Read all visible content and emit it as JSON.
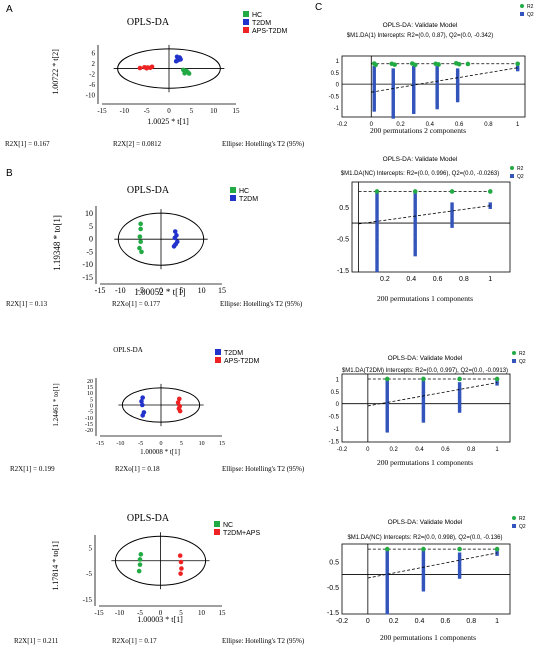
{
  "panel_labels": [
    "A",
    "B",
    "C"
  ],
  "colors": {
    "HC": "#22aa44",
    "NC": "#22aa44",
    "T2DM": "#2233cc",
    "APS": "#ee2222",
    "R2": "#22aa44",
    "Q2": "#3355bb"
  },
  "chart_data": [
    {
      "type": "scatter",
      "panel": "A",
      "title": "OPLS-DA",
      "xlabel": "1.0025 * t[1]",
      "ylabel": "1.00722 * t[2]",
      "xticks": [
        "-15",
        "-10",
        "-5",
        "0",
        "5",
        "10",
        "15"
      ],
      "yticks": [
        "6",
        "2",
        "-2",
        "-6",
        "-10"
      ],
      "xlim": [
        -15,
        15
      ],
      "ylim": [
        -12,
        9
      ],
      "ellipse": {
        "cx": 0,
        "cy": 0,
        "rx": 11.5,
        "ry": 7.5
      },
      "legend": [
        {
          "name": "HC",
          "color": "#22aa44"
        },
        {
          "name": "T2DM",
          "color": "#2233cc"
        },
        {
          "name": "APS-T2DM",
          "color": "#ee2222"
        }
      ],
      "series": [
        {
          "name": "HC",
          "color": "#22aa44",
          "points": [
            [
              3.2,
              -0.5
            ],
            [
              3.6,
              -1.2
            ],
            [
              3.5,
              -1.8
            ],
            [
              4.2,
              -1.4
            ],
            [
              4.5,
              -1.9
            ],
            [
              3.9,
              -0.9
            ]
          ]
        },
        {
          "name": "T2DM",
          "color": "#2233cc",
          "points": [
            [
              1.8,
              4.5
            ],
            [
              2.1,
              3.8
            ],
            [
              2.4,
              4.2
            ],
            [
              2.0,
              3.2
            ],
            [
              2.6,
              3.5
            ],
            [
              1.6,
              2.8
            ]
          ]
        },
        {
          "name": "APS-T2DM",
          "color": "#ee2222",
          "points": [
            [
              -6.5,
              0.2
            ],
            [
              -5.5,
              0.5
            ],
            [
              -4.8,
              0.4
            ],
            [
              -4.2,
              0.3
            ],
            [
              -3.8,
              0.7
            ],
            [
              -5.0,
              0.1
            ]
          ]
        }
      ],
      "footer": [
        "R2X[1] = 0.167",
        "R2X[2] = 0.0812",
        "Ellipse: Hotelling's T2 (95%)"
      ]
    },
    {
      "type": "scatter",
      "panel": "B1",
      "title": "OPLS-DA",
      "xlabel": "1.00052 * t[1]",
      "ylabel": "1.19348 * to[1]",
      "xticks": [
        "-15",
        "-10",
        "-5",
        "0",
        "5",
        "10",
        "15"
      ],
      "yticks": [
        "10",
        "5",
        "0",
        "-5",
        "-10",
        "-15"
      ],
      "xlim": [
        -15,
        15
      ],
      "ylim": [
        -16,
        13
      ],
      "ellipse": {
        "cx": 0,
        "cy": 0,
        "rx": 10.5,
        "ry": 10.2
      },
      "legend": [
        {
          "name": "HC",
          "color": "#22aa44"
        },
        {
          "name": "T2DM",
          "color": "#2233cc"
        }
      ],
      "series": [
        {
          "name": "HC",
          "color": "#22aa44",
          "points": [
            [
              -5,
              6
            ],
            [
              -5,
              4
            ],
            [
              -5.2,
              1
            ],
            [
              -5,
              -1
            ],
            [
              -5.3,
              -3.5
            ],
            [
              -4.8,
              -5
            ]
          ]
        },
        {
          "name": "T2DM",
          "color": "#2233cc",
          "points": [
            [
              3.5,
              3
            ],
            [
              3.8,
              1.5
            ],
            [
              3.4,
              0.5
            ],
            [
              4.0,
              -1
            ],
            [
              3.6,
              -2
            ],
            [
              3.2,
              -2.8
            ]
          ]
        }
      ],
      "footer": [
        "R2X[1] = 0.13",
        "R2Xo[1] = 0.177",
        "Ellipse: Hotelling's T2 (95%)"
      ]
    },
    {
      "type": "scatter",
      "panel": "B2",
      "title": "OPLS-DA",
      "xlabel": "1.00008 * t[1]",
      "ylabel": "1.24461 * to[1]",
      "xticks": [
        "-15",
        "-10",
        "-5",
        "0",
        "5",
        "10",
        "15"
      ],
      "yticks": [
        "20",
        "15",
        "10",
        "5",
        "0",
        "-5",
        "-10",
        "-15",
        "-20"
      ],
      "xlim": [
        -15,
        15
      ],
      "ylim": [
        -22,
        22
      ],
      "ellipse": {
        "cx": 0,
        "cy": 0,
        "rx": 9.5,
        "ry": 14
      },
      "legend": [
        {
          "name": "T2DM",
          "color": "#2233cc"
        },
        {
          "name": "APS-T2DM",
          "color": "#ee2222"
        }
      ],
      "series": [
        {
          "name": "T2DM",
          "color": "#2233cc",
          "points": [
            [
              -4.5,
              6
            ],
            [
              -4.8,
              3
            ],
            [
              -4.6,
              0
            ],
            [
              -4.2,
              -6
            ],
            [
              -4.5,
              -8.5
            ]
          ]
        },
        {
          "name": "APS-T2DM",
          "color": "#ee2222",
          "points": [
            [
              4.5,
              5
            ],
            [
              4.2,
              2
            ],
            [
              4.6,
              -1
            ],
            [
              4.4,
              -3
            ],
            [
              4.7,
              -5
            ]
          ]
        }
      ],
      "footer": [
        "R2X[1] = 0.199",
        "R2Xo[1] = 0.18",
        "Ellipse: Hotelling's T2 (95%)"
      ]
    },
    {
      "type": "scatter",
      "panel": "B3",
      "title": "OPLS-DA",
      "xlabel": "1.00003 * t[1]",
      "ylabel": "1.17814 * to[1]",
      "xticks": [
        "-15",
        "-10",
        "-5",
        "0",
        "5",
        "10",
        "15"
      ],
      "yticks": [
        "5",
        "-5",
        "-15"
      ],
      "xlim": [
        -15,
        15
      ],
      "ylim": [
        -16,
        10
      ],
      "ellipse": {
        "cx": 0,
        "cy": 0,
        "rx": 11,
        "ry": 9.5
      },
      "legend": [
        {
          "name": "NC",
          "color": "#22aa44"
        },
        {
          "name": "T2DM+APS",
          "color": "#ee2222"
        }
      ],
      "series": [
        {
          "name": "NC",
          "color": "#22aa44",
          "points": [
            [
              -4.8,
              2.5
            ],
            [
              -5,
              0.5
            ],
            [
              -5,
              -1.5
            ],
            [
              -5.2,
              -4
            ]
          ]
        },
        {
          "name": "T2DM+APS",
          "color": "#ee2222",
          "points": [
            [
              4.8,
              2
            ],
            [
              5,
              -0.5
            ],
            [
              5.1,
              -3
            ],
            [
              4.9,
              -5
            ]
          ]
        }
      ],
      "footer": [
        "R2X[1] = 0.211",
        "R2Xo[1] = 0.17",
        "Ellipse: Hotelling's T2 (95%)"
      ]
    },
    {
      "type": "scatter",
      "panel": "C1",
      "title": "OPLS-DA: Validate Model",
      "subtitle": "$M1.DA(1) Intercepts: R2=(0.0, 0.87), Q2=(0.0, -0.342)",
      "xlabel": "200 permutations 2 components",
      "xticks": [
        "-0.2",
        "0",
        "0.2",
        "0.4",
        "0.6",
        "0.8",
        "1"
      ],
      "yticks": [
        "1",
        "0.5",
        "0",
        "-0.5",
        "-1"
      ],
      "xlim": [
        -0.2,
        1.05
      ],
      "ylim": [
        -1.4,
        1.2
      ],
      "legend": [
        {
          "name": "R2",
          "color": "#22aa44"
        },
        {
          "name": "Q2",
          "color": "#3355bb"
        }
      ],
      "r2_line": {
        "x": [
          0,
          1
        ],
        "y": [
          0.87,
          0.87
        ]
      },
      "q2_line": {
        "x": [
          0,
          1
        ],
        "y": [
          -0.342,
          0.7
        ]
      },
      "r2_points": [
        [
          0.02,
          0.88
        ],
        [
          0.03,
          0.82
        ],
        [
          0.14,
          0.87
        ],
        [
          0.16,
          0.83
        ],
        [
          0.28,
          0.88
        ],
        [
          0.3,
          0.82
        ],
        [
          0.44,
          0.87
        ],
        [
          0.46,
          0.84
        ],
        [
          0.58,
          0.89
        ],
        [
          0.6,
          0.85
        ],
        [
          0.66,
          0.86
        ],
        [
          1.0,
          0.87
        ]
      ],
      "q2_bars": [
        {
          "x": 0.02,
          "ymin": -1.1,
          "ymax": 0.7
        },
        {
          "x": 0.15,
          "ymin": -1.4,
          "ymax": 0.6
        },
        {
          "x": 0.29,
          "ymin": -1.2,
          "ymax": 0.7
        },
        {
          "x": 0.45,
          "ymin": -1.0,
          "ymax": 0.7
        },
        {
          "x": 0.59,
          "ymin": -0.7,
          "ymax": 0.6
        },
        {
          "x": 1.0,
          "ymin": 0.62,
          "ymax": 0.72
        }
      ]
    },
    {
      "type": "scatter",
      "panel": "C2",
      "title": "OPLS-DA: Validate Model",
      "subtitle": "$M1.DA(NC) Intercepts: R2=(0.0, 0.996), Q2=(0.0, -0.0263)",
      "xlabel": "200 permutations 1 components",
      "xticks": [
        "0.2",
        "0.4",
        "0.6",
        "0.8",
        "1"
      ],
      "yticks": [
        "0.5",
        "-0.5",
        "-1.5"
      ],
      "xlim": [
        -0.05,
        1.15
      ],
      "ylim": [
        -1.55,
        1.3
      ],
      "legend": [
        {
          "name": "R2",
          "color": "#22aa44"
        },
        {
          "name": "Q2",
          "color": "#3355bb"
        }
      ],
      "r2_line": {
        "x": [
          0,
          1
        ],
        "y": [
          0.996,
          0.996
        ]
      },
      "q2_line": {
        "x": [
          0,
          1
        ],
        "y": [
          -0.0263,
          0.55
        ]
      },
      "r2_points": [
        [
          0.14,
          1.0
        ],
        [
          0.43,
          1.0
        ],
        [
          0.71,
          1.0
        ],
        [
          1.0,
          1.0
        ]
      ],
      "q2_bars": [
        {
          "x": 0.14,
          "ymin": -1.5,
          "ymax": 0.9
        },
        {
          "x": 0.43,
          "ymin": -1.0,
          "ymax": 0.9
        },
        {
          "x": 0.71,
          "ymin": -0.1,
          "ymax": 0.6
        },
        {
          "x": 1.0,
          "ymin": 0.5,
          "ymax": 0.6
        }
      ]
    },
    {
      "type": "scatter",
      "panel": "C3",
      "title": "OPLS-DA: Validate Model",
      "subtitle": "$M1.DA(T2DM) Intercepts: R2=(0.0, 0.997), Q2=(0.0, -0.0913)",
      "xlabel": "200 permutations 1 components",
      "xticks": [
        "-0.2",
        "0",
        "0.2",
        "0.4",
        "0.6",
        "0.8",
        "1"
      ],
      "yticks": [
        "1",
        "0.5",
        "0",
        "-0.5",
        "-1",
        "-1.5"
      ],
      "xlim": [
        -0.2,
        1.1
      ],
      "ylim": [
        -1.55,
        1.2
      ],
      "legend": [
        {
          "name": "R2",
          "color": "#22aa44"
        },
        {
          "name": "Q2",
          "color": "#3355bb"
        }
      ],
      "r2_line": {
        "x": [
          0,
          1
        ],
        "y": [
          0.997,
          0.997
        ]
      },
      "q2_line": {
        "x": [
          0,
          1
        ],
        "y": [
          -0.0913,
          0.85
        ]
      },
      "r2_points": [
        [
          0.15,
          1.0
        ],
        [
          0.43,
          1.0
        ],
        [
          0.71,
          1.0
        ],
        [
          1.0,
          1.0
        ]
      ],
      "q2_bars": [
        {
          "x": 0.15,
          "ymin": -1.1,
          "ymax": 0.9
        },
        {
          "x": 0.43,
          "ymin": -0.7,
          "ymax": 0.9
        },
        {
          "x": 0.71,
          "ymin": -0.3,
          "ymax": 0.8
        },
        {
          "x": 1.0,
          "ymin": 0.8,
          "ymax": 0.9
        }
      ]
    },
    {
      "type": "scatter",
      "panel": "C4",
      "title": "OPLS-DA: Validate Model",
      "subtitle": "$M1.DA(NC) Intercepts: R2=(0.0, 0.998), Q2=(0.0, -0.136)",
      "xlabel": "200 permutations 1 components",
      "xticks": [
        "-0.2",
        "0",
        "0.2",
        "0.4",
        "0.6",
        "0.8",
        "1"
      ],
      "yticks": [
        "0.5",
        "-0.5",
        "-1.5"
      ],
      "xlim": [
        -0.2,
        1.1
      ],
      "ylim": [
        -1.55,
        1.2
      ],
      "legend": [
        {
          "name": "R2",
          "color": "#22aa44"
        },
        {
          "name": "Q2",
          "color": "#3355bb"
        }
      ],
      "r2_line": {
        "x": [
          0,
          1
        ],
        "y": [
          0.998,
          0.998
        ]
      },
      "q2_line": {
        "x": [
          0,
          1
        ],
        "y": [
          -0.136,
          0.85
        ]
      },
      "r2_points": [
        [
          0.15,
          1.0
        ],
        [
          0.43,
          1.0
        ],
        [
          0.71,
          1.0
        ],
        [
          1.0,
          1.0
        ]
      ],
      "q2_bars": [
        {
          "x": 0.15,
          "ymin": -1.5,
          "ymax": 0.9
        },
        {
          "x": 0.43,
          "ymin": -0.6,
          "ymax": 0.9
        },
        {
          "x": 0.71,
          "ymin": -0.1,
          "ymax": 0.8
        },
        {
          "x": 1.0,
          "ymin": 0.8,
          "ymax": 0.9
        }
      ]
    }
  ]
}
